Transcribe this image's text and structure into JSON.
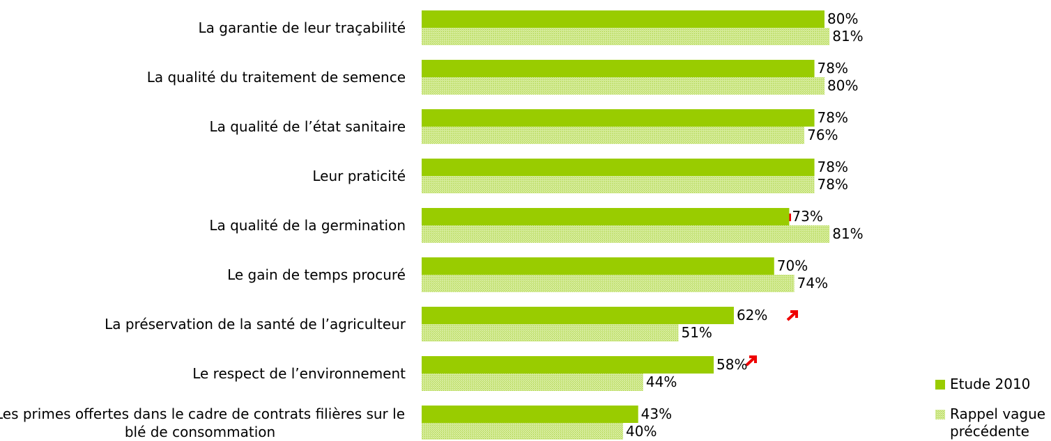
{
  "chart_data": {
    "type": "bar",
    "orientation": "horizontal",
    "categories": [
      "La garantie de leur traçabilité",
      "La qualité du traitement de semence",
      "La qualité de l’état sanitaire",
      "Leur praticité",
      "La qualité de la germination",
      "Le gain de temps procuré",
      "La préservation de la santé de l’agriculteur",
      "Le respect de l’environnement",
      "Les primes offertes dans le cadre de contrats filières sur le blé de consommation"
    ],
    "series": [
      {
        "name": "Etude 2010",
        "color": "#99cc00",
        "values": [
          80,
          78,
          78,
          78,
          73,
          70,
          62,
          58,
          43
        ],
        "value_labels": [
          "80%",
          "78%",
          "78%",
          "78%",
          "73%",
          "70%",
          "62%",
          "58%",
          "43%"
        ]
      },
      {
        "name": "Rappel vague précédente",
        "color": "#c6e47a",
        "values": [
          81,
          80,
          76,
          78,
          81,
          74,
          51,
          44,
          40
        ],
        "value_labels": [
          "81%",
          "80%",
          "76%",
          "78%",
          "81%",
          "74%",
          "51%",
          "44%",
          "40%"
        ]
      }
    ],
    "legend": "right"
  }
}
